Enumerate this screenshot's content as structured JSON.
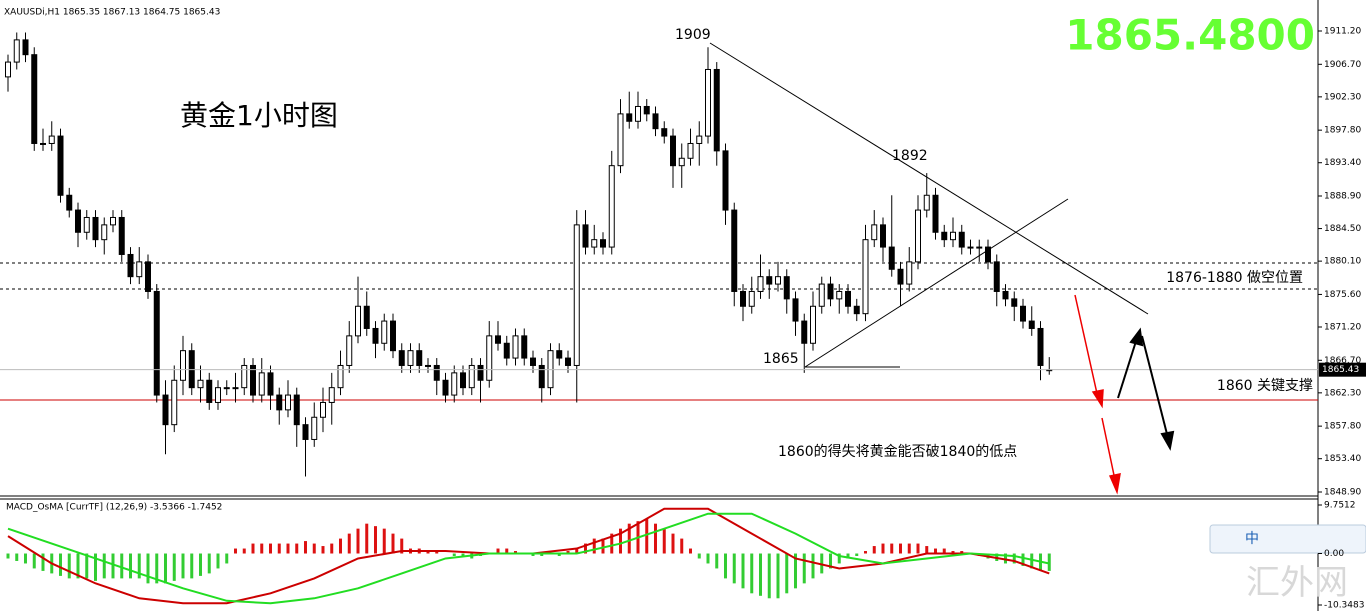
{
  "chart_data": {
    "type": "candlestick",
    "header": "XAUUSDi,H1  1865.35 1867.13 1864.75 1865.43",
    "title": "黄金1小时图",
    "big_price": "1865.4800",
    "annotations": [
      "1909",
      "1892",
      "1865",
      "1876-1880 做空位置",
      "1860 关键支撑",
      "1860的得失将黄金能否破1840的低点"
    ],
    "up_color": "#ffffff",
    "down_color": "#000000",
    "ylim": [
      1848.9,
      1911.2
    ],
    "yticks": [
      {
        "value": 1911.2,
        "label": "1911.20"
      },
      {
        "value": 1906.7,
        "label": "1906.70"
      },
      {
        "value": 1902.3,
        "label": "1902.30"
      },
      {
        "value": 1897.8,
        "label": "1897.80"
      },
      {
        "value": 1893.4,
        "label": "1893.40"
      },
      {
        "value": 1888.9,
        "label": "1888.90"
      },
      {
        "value": 1884.5,
        "label": "1884.50"
      },
      {
        "value": 1880.1,
        "label": "1880.10"
      },
      {
        "value": 1875.6,
        "label": "1875.60"
      },
      {
        "value": 1871.2,
        "label": "1871.20"
      },
      {
        "value": 1866.7,
        "label": "1866.70"
      },
      {
        "value": 1862.3,
        "label": "1862.30"
      },
      {
        "value": 1857.8,
        "label": "1857.80"
      },
      {
        "value": 1853.4,
        "label": "1853.40"
      },
      {
        "value": 1848.9,
        "label": "1848.90"
      }
    ],
    "candles": [
      [
        1905,
        1908,
        1903,
        1907
      ],
      [
        1907,
        1911,
        1906,
        1910
      ],
      [
        1910,
        1911,
        1907,
        1908
      ],
      [
        1908,
        1909,
        1895,
        1896
      ],
      [
        1896,
        1898,
        1895,
        1896
      ],
      [
        1896,
        1899,
        1895,
        1897
      ],
      [
        1897,
        1898,
        1888,
        1889
      ],
      [
        1889,
        1890,
        1886,
        1887
      ],
      [
        1887,
        1888,
        1882,
        1884
      ],
      [
        1884,
        1887,
        1883,
        1886
      ],
      [
        1886,
        1887,
        1882,
        1883
      ],
      [
        1883,
        1886,
        1881,
        1885
      ],
      [
        1885,
        1887,
        1884,
        1886
      ],
      [
        1886,
        1887,
        1880,
        1881
      ],
      [
        1881,
        1882,
        1877,
        1878
      ],
      [
        1878,
        1882,
        1877,
        1880
      ],
      [
        1880,
        1881,
        1875,
        1876
      ],
      [
        1876,
        1877,
        1861,
        1862
      ],
      [
        1862,
        1864,
        1854,
        1858
      ],
      [
        1858,
        1866,
        1857,
        1864
      ],
      [
        1864,
        1870,
        1862,
        1868
      ],
      [
        1868,
        1869,
        1862,
        1863
      ],
      [
        1863,
        1866,
        1861,
        1864
      ],
      [
        1864,
        1865,
        1860,
        1861
      ],
      [
        1861,
        1864,
        1860,
        1863
      ],
      [
        1863,
        1864,
        1862,
        1863
      ],
      [
        1863,
        1865,
        1861,
        1863
      ],
      [
        1863,
        1867,
        1862,
        1866
      ],
      [
        1866,
        1867,
        1861,
        1862
      ],
      [
        1862,
        1867,
        1861,
        1865
      ],
      [
        1865,
        1866,
        1860,
        1862
      ],
      [
        1862,
        1863,
        1858,
        1860
      ],
      [
        1860,
        1864,
        1859,
        1862
      ],
      [
        1862,
        1863,
        1855,
        1858
      ],
      [
        1858,
        1859,
        1851,
        1856
      ],
      [
        1856,
        1861,
        1855,
        1859
      ],
      [
        1859,
        1863,
        1857,
        1861
      ],
      [
        1861,
        1865,
        1858,
        1863
      ],
      [
        1863,
        1868,
        1862,
        1866
      ],
      [
        1866,
        1872,
        1865,
        1870
      ],
      [
        1870,
        1878,
        1869,
        1874
      ],
      [
        1874,
        1876,
        1870,
        1871
      ],
      [
        1871,
        1872,
        1867,
        1869
      ],
      [
        1869,
        1873,
        1868,
        1872
      ],
      [
        1872,
        1873,
        1867,
        1868
      ],
      [
        1868,
        1869,
        1865,
        1866
      ],
      [
        1866,
        1869,
        1865,
        1868
      ],
      [
        1868,
        1869,
        1865,
        1866
      ],
      [
        1866,
        1867,
        1865,
        1866
      ],
      [
        1866,
        1867,
        1862,
        1864
      ],
      [
        1864,
        1865,
        1861,
        1862
      ],
      [
        1862,
        1866,
        1861,
        1865
      ],
      [
        1865,
        1866,
        1862,
        1863
      ],
      [
        1863,
        1867,
        1862,
        1866
      ],
      [
        1866,
        1867,
        1861,
        1864
      ],
      [
        1864,
        1872,
        1863,
        1870
      ],
      [
        1870,
        1872,
        1868,
        1869
      ],
      [
        1869,
        1870,
        1866,
        1867
      ],
      [
        1867,
        1871,
        1866,
        1870
      ],
      [
        1870,
        1871,
        1866,
        1867
      ],
      [
        1867,
        1868,
        1865,
        1866
      ],
      [
        1866,
        1867,
        1861,
        1863
      ],
      [
        1863,
        1869,
        1862,
        1868
      ],
      [
        1868,
        1869,
        1866,
        1867
      ],
      [
        1867,
        1868,
        1865,
        1866
      ],
      [
        1866,
        1887,
        1861,
        1885
      ],
      [
        1885,
        1887,
        1881,
        1882
      ],
      [
        1882,
        1885,
        1881,
        1883
      ],
      [
        1883,
        1884,
        1881,
        1882
      ],
      [
        1882,
        1895,
        1881,
        1893
      ],
      [
        1893,
        1902,
        1892,
        1900
      ],
      [
        1900,
        1903,
        1898,
        1899
      ],
      [
        1899,
        1903,
        1898,
        1901
      ],
      [
        1901,
        1902,
        1899,
        1900
      ],
      [
        1900,
        1901,
        1897,
        1898
      ],
      [
        1898,
        1899,
        1896,
        1897
      ],
      [
        1897,
        1898,
        1890,
        1893
      ],
      [
        1893,
        1896,
        1890,
        1894
      ],
      [
        1894,
        1898,
        1893,
        1896
      ],
      [
        1896,
        1899,
        1893,
        1897
      ],
      [
        1897,
        1909,
        1896,
        1906
      ],
      [
        1906,
        1907,
        1893,
        1895
      ],
      [
        1895,
        1896,
        1885,
        1887
      ],
      [
        1887,
        1888,
        1874,
        1876
      ],
      [
        1876,
        1877,
        1872,
        1874
      ],
      [
        1874,
        1878,
        1873,
        1876
      ],
      [
        1876,
        1881,
        1875,
        1878
      ],
      [
        1878,
        1879,
        1875,
        1877
      ],
      [
        1877,
        1880,
        1876,
        1878
      ],
      [
        1878,
        1879,
        1873,
        1875
      ],
      [
        1875,
        1876,
        1870,
        1872
      ],
      [
        1872,
        1873,
        1865,
        1869
      ],
      [
        1869,
        1876,
        1868,
        1874
      ],
      [
        1874,
        1878,
        1873,
        1877
      ],
      [
        1877,
        1878,
        1874,
        1875
      ],
      [
        1875,
        1877,
        1873,
        1876
      ],
      [
        1876,
        1877,
        1873,
        1874
      ],
      [
        1874,
        1875,
        1872,
        1873
      ],
      [
        1873,
        1885,
        1872,
        1883
      ],
      [
        1883,
        1887,
        1882,
        1885
      ],
      [
        1885,
        1886,
        1880,
        1882
      ],
      [
        1882,
        1889,
        1878,
        1879
      ],
      [
        1879,
        1880,
        1874,
        1877
      ],
      [
        1877,
        1882,
        1876,
        1880
      ],
      [
        1880,
        1889,
        1879,
        1887
      ],
      [
        1887,
        1892,
        1886,
        1889
      ],
      [
        1889,
        1890,
        1883,
        1884
      ],
      [
        1884,
        1885,
        1882,
        1883
      ],
      [
        1883,
        1886,
        1882,
        1884
      ],
      [
        1884,
        1885,
        1881,
        1882
      ],
      [
        1882,
        1883,
        1881,
        1882
      ],
      [
        1882,
        1883,
        1880,
        1882
      ],
      [
        1882,
        1883,
        1879,
        1880
      ],
      [
        1880,
        1881,
        1874,
        1876
      ],
      [
        1876,
        1877,
        1874,
        1875
      ],
      [
        1875,
        1876,
        1872,
        1874
      ],
      [
        1874,
        1875,
        1871,
        1872
      ],
      [
        1872,
        1874,
        1870,
        1871
      ],
      [
        1871,
        1872,
        1864,
        1866
      ],
      [
        1865.35,
        1867.13,
        1864.75,
        1865.43
      ]
    ],
    "macd": {
      "title": "MACD_OsMA [CurrTF] (12,26,9) -3.5366 -1.7452",
      "ylim": [
        -10.3483,
        9.7512
      ],
      "yticks": [
        9.7512,
        {
          "value": 0,
          "label": "0.00"
        },
        -10.3483
      ],
      "histogram": [
        -1,
        -1.5,
        -2,
        -3,
        -3.5,
        -4,
        -4.5,
        -5,
        -5,
        -5,
        -5.5,
        -5,
        -5,
        -5,
        -5,
        -5,
        -6,
        -6,
        -6,
        -5.5,
        -5,
        -5,
        -4.5,
        -4,
        -3,
        -2,
        1,
        1,
        2,
        2,
        2,
        2,
        2,
        2,
        2.5,
        2,
        1.5,
        2,
        3,
        4,
        5,
        6,
        5.5,
        5,
        4,
        3,
        1,
        1,
        0.5,
        0.5,
        0,
        -0.5,
        -0.5,
        -1,
        -0.5,
        0,
        1,
        1,
        0.5,
        0,
        -0.5,
        -0.5,
        0,
        -0.5,
        0.5,
        1,
        2,
        3,
        3,
        4,
        5,
        6,
        6.5,
        7,
        6,
        5,
        4,
        3,
        1,
        -1,
        -2,
        -3,
        -5,
        -6,
        -7,
        -8,
        -8.5,
        -9,
        -9,
        -8,
        -7,
        -6,
        -5,
        -4,
        -3,
        -2,
        -1,
        -0.5,
        0.5,
        1.5,
        2,
        2,
        2,
        2,
        2,
        1.5,
        1,
        1,
        0.5,
        0.5,
        0,
        -0.5,
        -1,
        -1.5,
        -2,
        -2,
        -2.5,
        -3,
        -3.5,
        -3.5
      ],
      "positive_color": "#dd1111",
      "negative_color": "#33cc33",
      "x": [
        0,
        5,
        10,
        15,
        20,
        25,
        30,
        35,
        40,
        45,
        50,
        55,
        60,
        65,
        70,
        75,
        80,
        85,
        90,
        95,
        100,
        105,
        110,
        115,
        119
      ],
      "series": [
        {
          "color": "#cc0000",
          "values": [
            3.5,
            -2,
            -6,
            -9,
            -10,
            -10,
            -8,
            -5,
            -1,
            0.5,
            0.5,
            0,
            0,
            1,
            4,
            9,
            9,
            4,
            -1,
            -3,
            -2,
            0,
            0,
            -1.5,
            -4
          ]
        },
        {
          "color": "#22dd22",
          "values": [
            5,
            2,
            -1,
            -4,
            -7,
            -9.5,
            -10,
            -9,
            -7,
            -4,
            -1,
            0,
            0,
            0,
            2,
            5,
            8,
            8,
            4,
            -0.5,
            -2,
            -1,
            0,
            -0.5,
            -2
          ]
        }
      ]
    }
  },
  "watermark": "汇外网",
  "toolbar": [
    "中"
  ]
}
